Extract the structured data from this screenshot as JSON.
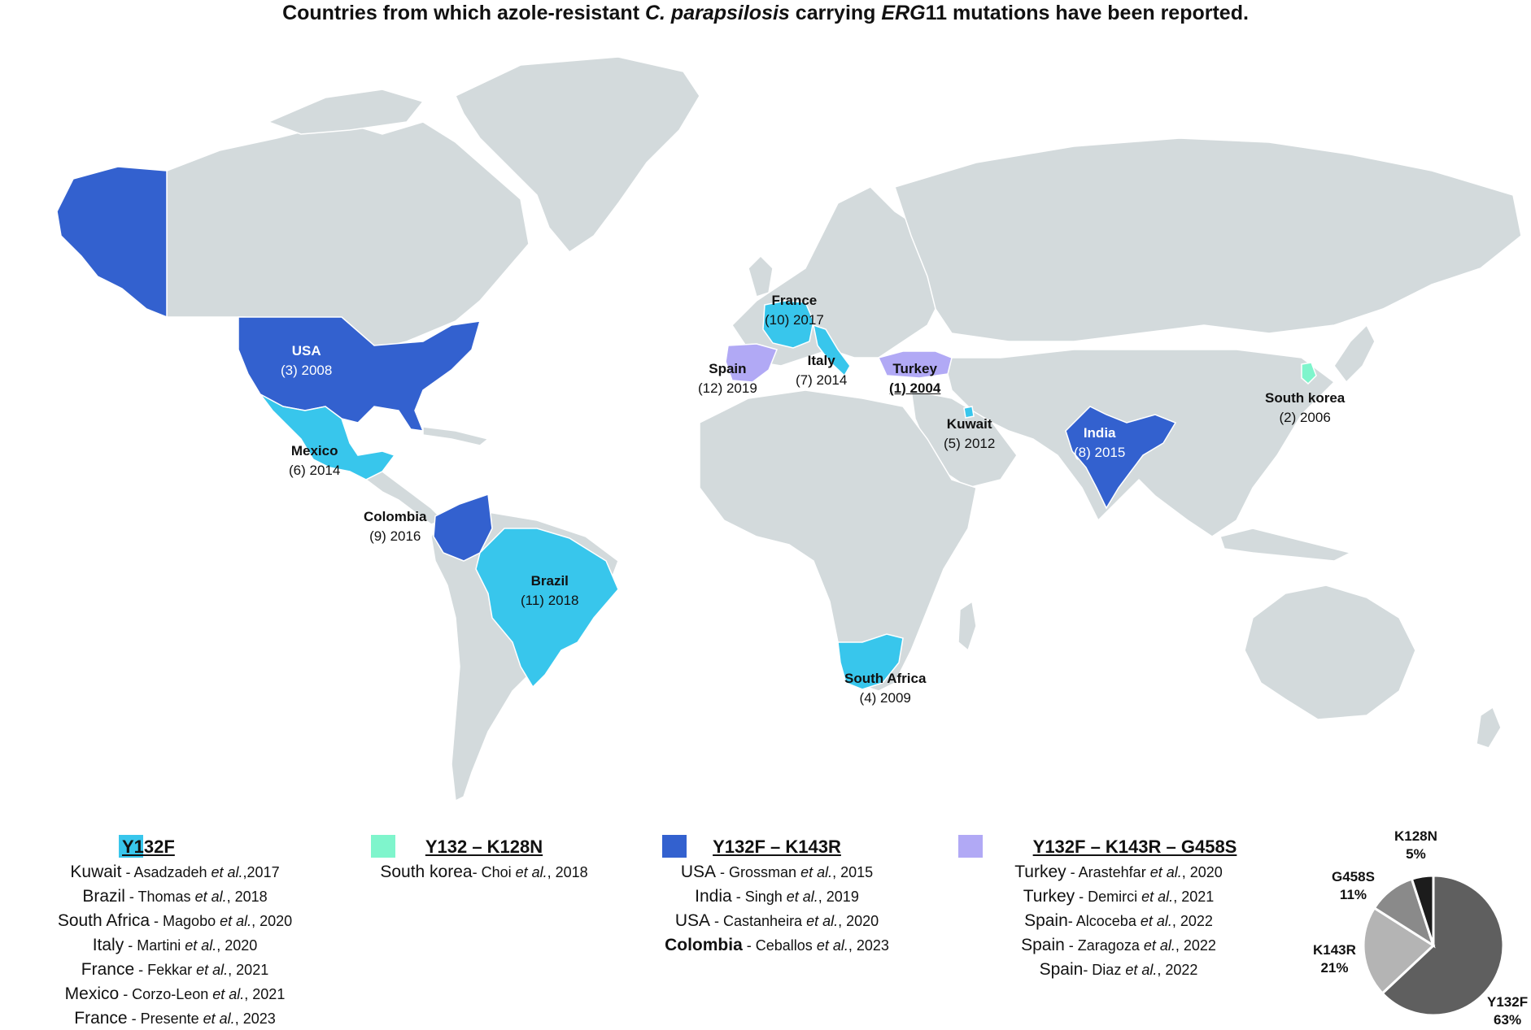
{
  "title": {
    "pre": "Countries from which azole-resistant ",
    "species": "C. parapsilosis",
    "mid": " carrying ",
    "gene": "ERG",
    "post": "11 mutations have been reported."
  },
  "colors": {
    "land": "#d3dadc",
    "Y132F": "#38c6ec",
    "Y132_K128N": "#7ff5cc",
    "Y132F_K143R": "#3361cf",
    "Y132F_K143R_G458S": "#b1a9f5"
  },
  "map_labels": [
    {
      "country": "USA",
      "note": "(3) 2008",
      "mutation": "Y132F_K143R"
    },
    {
      "country": "Mexico",
      "note": "(6) 2014",
      "mutation": "Y132F"
    },
    {
      "country": "Colombia",
      "note": "(9) 2016",
      "mutation": "Y132F_K143R"
    },
    {
      "country": "Brazil",
      "note": "(11) 2018",
      "mutation": "Y132F"
    },
    {
      "country": "France",
      "note": "(10) 2017",
      "mutation": "Y132F"
    },
    {
      "country": "Spain",
      "note": "(12) 2019",
      "mutation": "Y132F_K143R_G458S"
    },
    {
      "country": "Italy",
      "note": "(7) 2014",
      "mutation": "Y132F"
    },
    {
      "country": "Turkey",
      "note": "(1) 2004",
      "mutation": "Y132F_K143R_G458S"
    },
    {
      "country": "Kuwait",
      "note": "(5) 2012",
      "mutation": "Y132F"
    },
    {
      "country": "India",
      "note": "(8) 2015",
      "mutation": "Y132F_K143R"
    },
    {
      "country": "South korea",
      "note": "(2) 2006",
      "mutation": "Y132_K128N"
    },
    {
      "country": "South Africa",
      "note": "(4) 2009",
      "mutation": "Y132F"
    }
  ],
  "legend": [
    {
      "title": "Y132F",
      "refs": [
        {
          "country": "Kuwait",
          "sep": " - ",
          "author": "Asadzadeh",
          "year": ",2017"
        },
        {
          "country": "Brazil",
          "sep": " - ",
          "author": "Thomas",
          "year": ", 2018"
        },
        {
          "country": "South Africa",
          "sep": " - ",
          "author": "Magobo",
          "year": ", 2020"
        },
        {
          "country": "Italy",
          "sep": " - ",
          "author": "Martini",
          "year": ", 2020"
        },
        {
          "country": "France",
          "sep": " - ",
          "author": "Fekkar",
          "year": ", 2021"
        },
        {
          "country": "Mexico",
          "sep": " - ",
          "author": "Corzo-Leon",
          "year": ", 2021"
        },
        {
          "country": "France",
          "sep": " - ",
          "author": "Presente",
          "year": ", 2023"
        }
      ]
    },
    {
      "title": "Y132 – K128N",
      "refs": [
        {
          "country": "South korea",
          "sep": "- ",
          "author": "Choi",
          "year": ", 2018"
        }
      ]
    },
    {
      "title": "Y132F – K143R",
      "refs": [
        {
          "country": "USA",
          "sep": " - ",
          "author": "Grossman",
          "year": ", 2015"
        },
        {
          "country": "India",
          "sep": " - ",
          "author": "Singh",
          "year": ", 2019"
        },
        {
          "country": "USA",
          "sep": " - ",
          "author": "Castanheira",
          "year": ", 2020"
        },
        {
          "country": "Colombia",
          "sep": " - ",
          "author": "Ceballos",
          "year": ", 2023"
        }
      ]
    },
    {
      "title": "Y132F – K143R – G458S",
      "refs": [
        {
          "country": "Turkey",
          "sep": " - ",
          "author": "Arastehfar",
          "year": ", 2020"
        },
        {
          "country": "Turkey",
          "sep": " - ",
          "author": "Demirci",
          "year": ", 2021"
        },
        {
          "country": "Spain",
          "sep": "- ",
          "author": "Alcoceba",
          "year": ", 2022"
        },
        {
          "country": "Spain",
          "sep": " - ",
          "author": "Zaragoza",
          "year": ", 2022"
        },
        {
          "country": "Spain",
          "sep": "- ",
          "author": "Diaz",
          "year": ", 2022"
        }
      ]
    }
  ],
  "etal": "et al.",
  "chart_data": {
    "type": "pie",
    "slices": [
      {
        "label": "Y132F",
        "value": 63,
        "text": "63%",
        "color": "#5f5f5f"
      },
      {
        "label": "K143R",
        "value": 21,
        "text": "21%",
        "color": "#b4b4b4"
      },
      {
        "label": "G458S",
        "value": 11,
        "text": "11%",
        "color": "#8a8a8a"
      },
      {
        "label": "K128N",
        "value": 5,
        "text": "5%",
        "color": "#1c1c1c"
      }
    ]
  }
}
